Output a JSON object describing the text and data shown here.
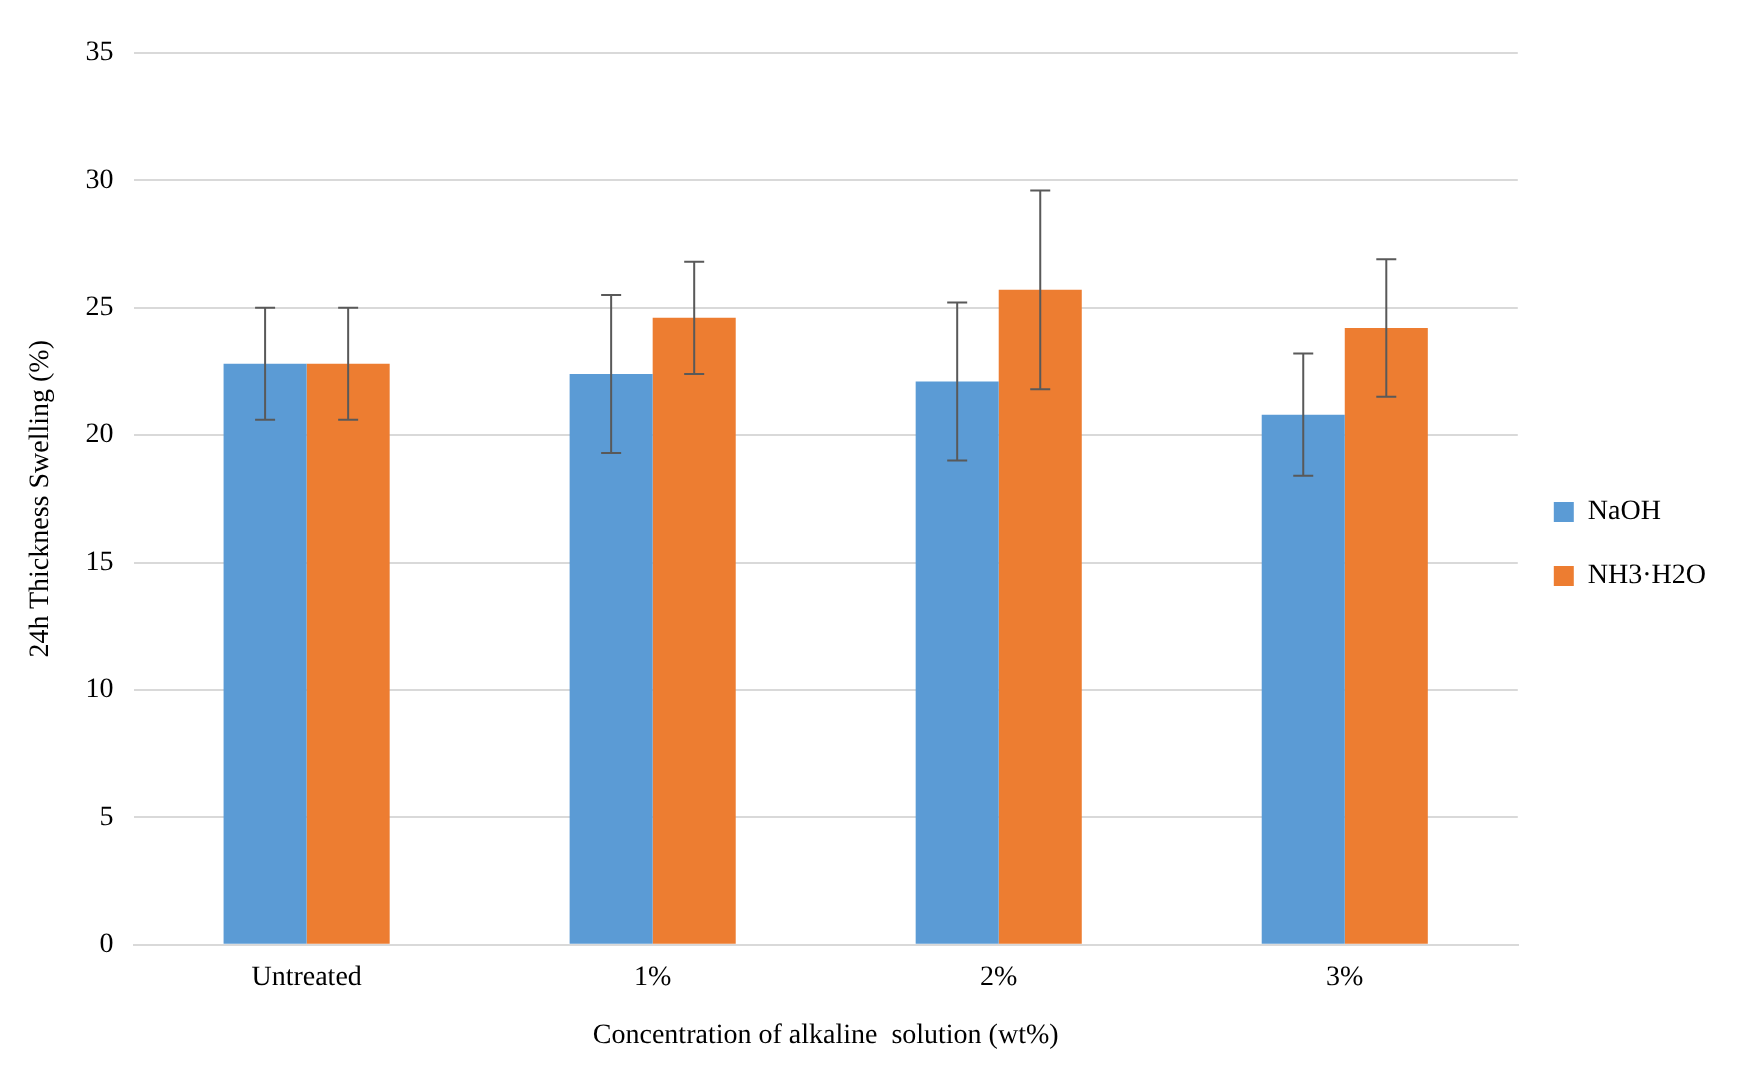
{
  "chart_data": {
    "type": "bar",
    "xlabel": "Concentration of alkaline  solution (wt%)",
    "ylabel": "24h Thickness Swelling (%)",
    "categories": [
      "Untreated",
      "1%",
      "2%",
      "3%"
    ],
    "series": [
      {
        "name": "NaOH",
        "color": "#5b9bd5",
        "values": [
          22.8,
          22.4,
          22.1,
          20.8
        ],
        "errors": [
          2.2,
          3.1,
          3.1,
          2.4
        ]
      },
      {
        "name": "NH3·H2O",
        "color": "#ed7d31",
        "values": [
          22.8,
          24.6,
          25.7,
          24.2
        ],
        "errors": [
          2.2,
          2.2,
          3.9,
          2.7
        ]
      }
    ],
    "ylim": [
      0,
      35
    ],
    "yticks": [
      0,
      5,
      10,
      15,
      20,
      25,
      30,
      35
    ],
    "grid": "y",
    "legend": "right"
  }
}
